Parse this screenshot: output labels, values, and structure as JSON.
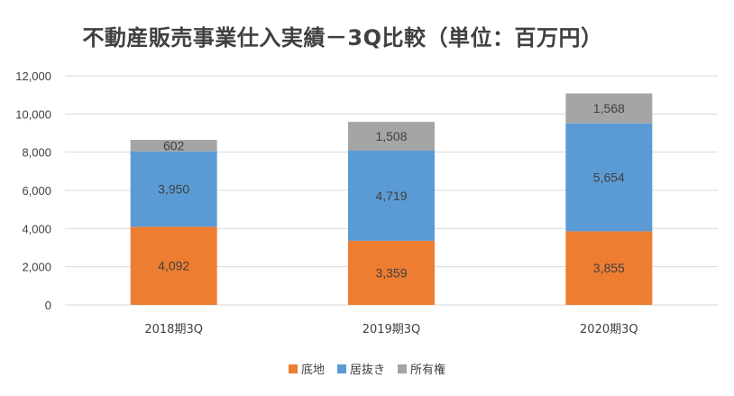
{
  "chart_data": {
    "type": "bar",
    "stacked": true,
    "title": "不動産販売事業仕入実績－3Q比較（単位：百万円）",
    "categories": [
      "2018期3Q",
      "2019期3Q",
      "2020期3Q"
    ],
    "series": [
      {
        "name": "底地",
        "values": [
          4092,
          3359,
          3855
        ],
        "labels": [
          "4,092",
          "3,359",
          "3,855"
        ],
        "color": "#ED7D31"
      },
      {
        "name": "居抜き",
        "values": [
          3950,
          4719,
          5654
        ],
        "labels": [
          "3,950",
          "4,719",
          "5,654"
        ],
        "color": "#5B9BD5"
      },
      {
        "name": "所有権",
        "values": [
          602,
          1508,
          1568
        ],
        "labels": [
          "602",
          "1,508",
          "1,568"
        ],
        "color": "#A5A5A5"
      }
    ],
    "ylim": [
      0,
      12000
    ],
    "yticks": [
      0,
      2000,
      4000,
      6000,
      8000,
      10000,
      12000
    ],
    "ytick_labels": [
      "0",
      "2,000",
      "4,000",
      "6,000",
      "8,000",
      "10,000",
      "12,000"
    ],
    "grid": true,
    "legend": "bottom",
    "gridline_color": "#D9D9D9"
  }
}
